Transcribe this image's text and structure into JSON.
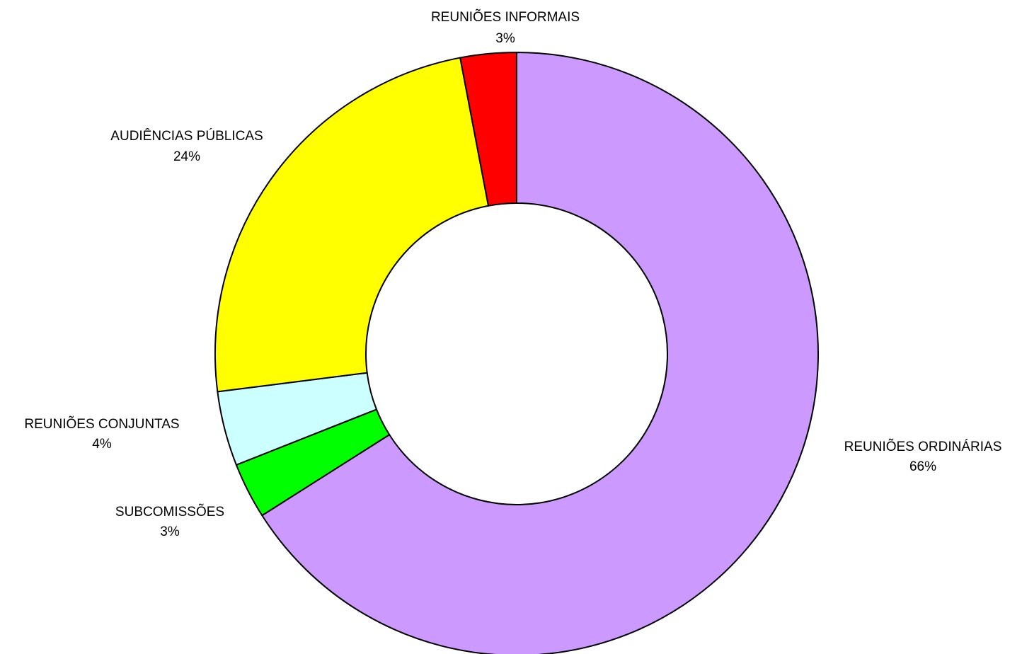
{
  "chart_data": {
    "type": "donut",
    "categories": [
      "REUNIÕES ORDINÁRIAS",
      "SUBCOMISSÕES",
      "REUNIÕES CONJUNTAS",
      "AUDIÊNCIAS PÚBLICAS",
      "REUNIÕES INFORMAIS"
    ],
    "values": [
      66,
      3,
      4,
      24,
      3
    ],
    "value_labels": [
      "66%",
      "3%",
      "4%",
      "24%",
      "3%"
    ],
    "colors": [
      "#cc99ff",
      "#00ff00",
      "#ccffff",
      "#ffff00",
      "#ff0000"
    ]
  }
}
